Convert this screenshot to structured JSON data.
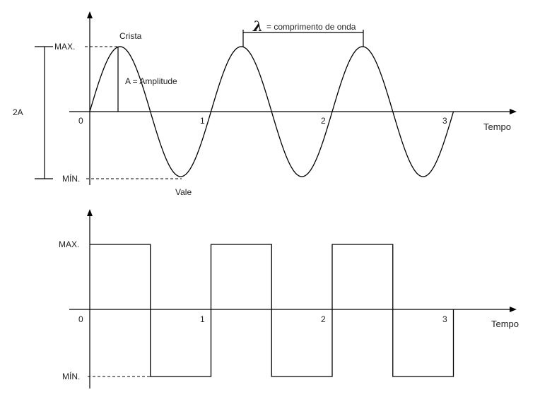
{
  "sine_panel": {
    "max_label": "MAX.",
    "min_label": "MÍN.",
    "two_a_label": "2A",
    "crest_label": "Crista",
    "trough_label": "Vale",
    "amplitude_label": "A = Amplitude",
    "lambda_symbol": "λ",
    "wavelength_label": "= comprimento de onda",
    "time_label": "Tempo",
    "ticks": [
      "0",
      "1",
      "2",
      "3"
    ]
  },
  "square_panel": {
    "max_label": "MAX.",
    "min_label": "MÍN.",
    "time_label": "Tempo",
    "ticks": [
      "0",
      "1",
      "2",
      "3"
    ]
  },
  "colors": {
    "line": "#000000",
    "text": "#222222"
  }
}
